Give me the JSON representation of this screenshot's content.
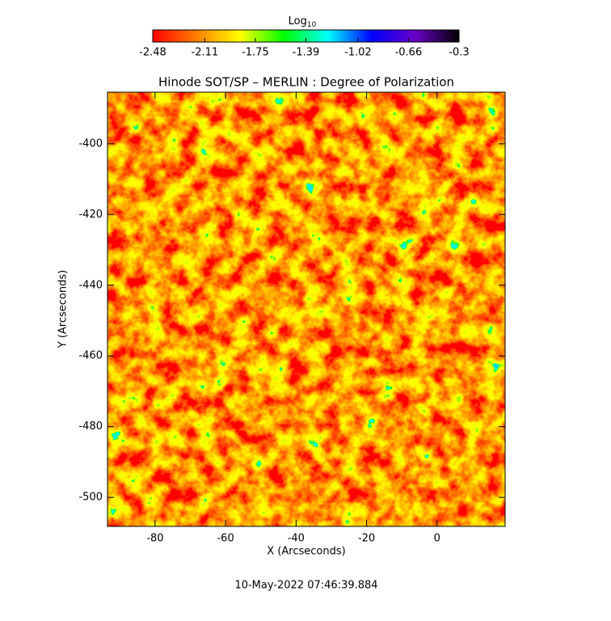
{
  "chart_data": {
    "type": "heatmap",
    "title": "Hinode SOT/SP – MERLIN : Degree of Polarization",
    "x_label": "X (Arcseconds)",
    "y_label": "Y (Arcseconds)",
    "footer": "10-May-2022 07:46:39.884",
    "xlim": [
      -93.5,
      19.3
    ],
    "xticks": [
      -80,
      -60,
      -40,
      -20,
      0
    ],
    "ylim": [
      -508.2,
      -385.4
    ],
    "yticks": [
      -400,
      -420,
      -440,
      -460,
      -480,
      -500
    ],
    "colorbar": {
      "label": "Log",
      "label_subscript": "10",
      "lim": [
        -2.48,
        -0.3
      ],
      "ticks": [
        -2.48,
        -2.11,
        -1.75,
        -1.39,
        -1.02,
        -0.66,
        -0.3
      ],
      "colors": [
        "#ff0000",
        "#ff7f00",
        "#ffff00",
        "#00ff00",
        "#00ffff",
        "#0000ff",
        "#6a00c8",
        "#000000"
      ]
    }
  }
}
